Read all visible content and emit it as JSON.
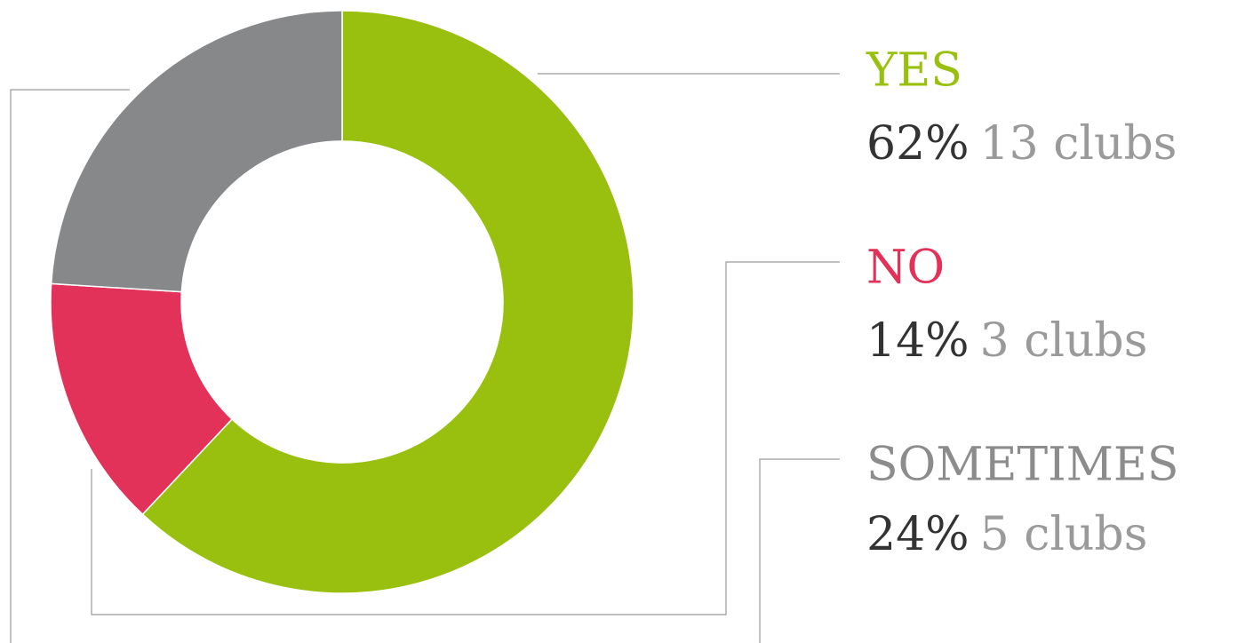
{
  "chart_data": {
    "type": "pie",
    "donut": true,
    "categories": [
      "YES",
      "NO",
      "SOMETIMES"
    ],
    "values": [
      62,
      14,
      24
    ],
    "value_labels": [
      "62%",
      "14%",
      "24%"
    ],
    "count_labels": [
      "13 clubs",
      "3 clubs",
      "5 clubs"
    ],
    "colors": [
      "#99c00f",
      "#e3325a",
      "#87888a"
    ]
  }
}
